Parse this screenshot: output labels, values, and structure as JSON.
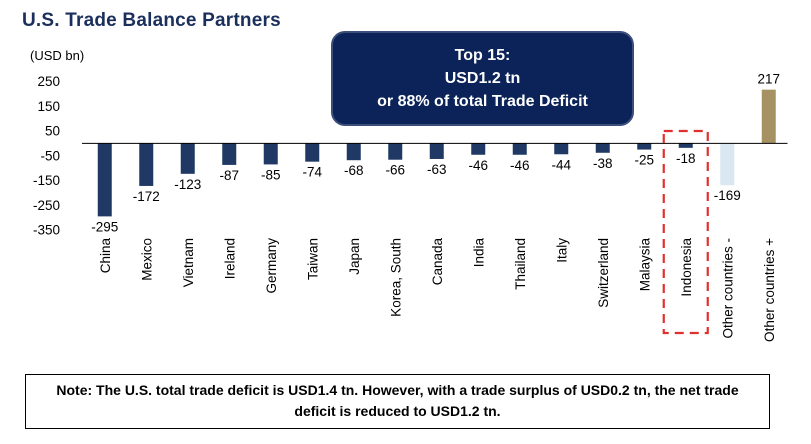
{
  "title": "U.S. Trade Balance Partners",
  "unit_label": "(USD bn)",
  "callout": {
    "line1": "Top 15:",
    "line2": "USD1.2 tn",
    "line3": "or 88% of total Trade Deficit"
  },
  "note": "Note: The U.S. total trade deficit is USD1.4 tn. However, with a trade surplus of USD0.2 tn, the net trade deficit is reduced to USD1.2 tn.",
  "colors": {
    "deficit_bar": "#1f3864",
    "other_deficit_bar": "#d9e7f2",
    "surplus_bar": "#a69163",
    "highlight_box": "#e0312f",
    "title": "#1a2f5c"
  },
  "chart_data": {
    "type": "bar",
    "title": "U.S. Trade Balance Partners",
    "ylabel": "(USD bn)",
    "xlabel": "",
    "categories": [
      "China",
      "Mexico",
      "Vietnam",
      "Ireland",
      "Germany",
      "Taiwan",
      "Japan",
      "Korea, South",
      "Canada",
      "India",
      "Thailand",
      "Italy",
      "Switzerland",
      "Malaysia",
      "Indonesia",
      "Other countries -",
      "Other countries +"
    ],
    "values": [
      -295,
      -172,
      -123,
      -87,
      -85,
      -74,
      -68,
      -66,
      -63,
      -46,
      -46,
      -44,
      -38,
      -25,
      -18,
      -169,
      217
    ],
    "ylim": [
      -350,
      250
    ],
    "yticks": [
      250,
      150,
      50,
      -50,
      -150,
      -250,
      -350
    ],
    "highlighted_category": "Indonesia",
    "grid": false
  }
}
